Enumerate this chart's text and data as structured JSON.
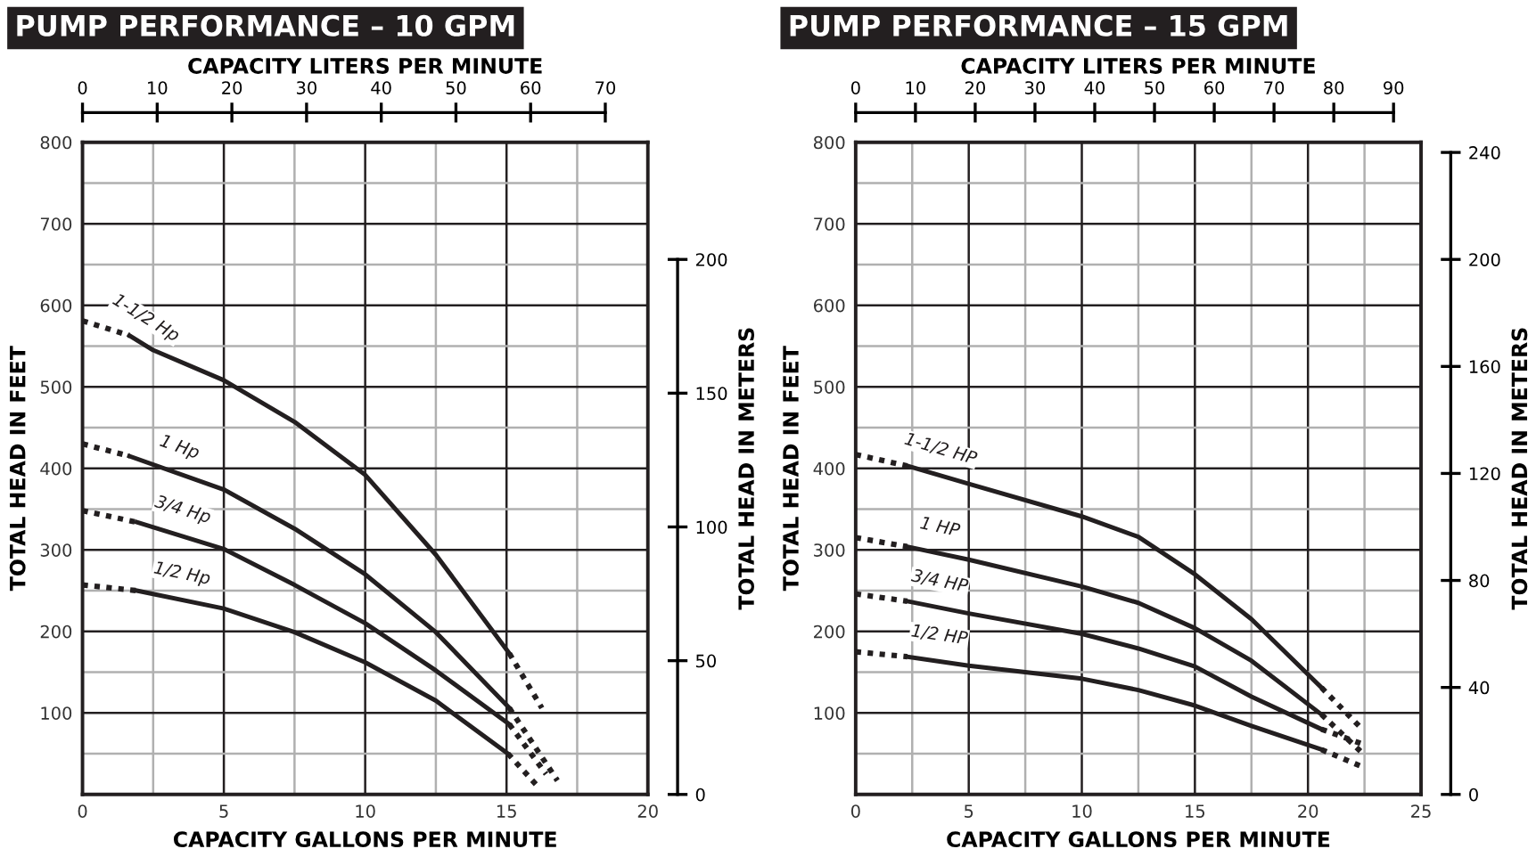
{
  "chart_data": [
    {
      "type": "line",
      "title": "PUMP PERFORMANCE – 10 GPM",
      "xlabel": "CAPACITY GALLONS PER MINUTE",
      "ylabel": "TOTAL HEAD IN FEET",
      "x2label": "CAPACITY LITERS PER MINUTE",
      "y2label": "TOTAL HEAD IN METERS",
      "xlim": [
        0,
        20
      ],
      "xticks": [
        0,
        {
          "value": 2.5,
          "label": null
        },
        5,
        {
          "value": 7.5,
          "label": null
        },
        10,
        {
          "value": 12.5,
          "label": null
        },
        15,
        {
          "value": 17.5,
          "label": null
        },
        20
      ],
      "ylim": [
        0,
        800
      ],
      "yticks": [
        {
          "value": 0,
          "label": null
        },
        {
          "value": 50,
          "label": null
        },
        100,
        {
          "value": 150,
          "label": null
        },
        200,
        {
          "value": 250,
          "label": null
        },
        300,
        {
          "value": 350,
          "label": null
        },
        400,
        {
          "value": 450,
          "label": null
        },
        500,
        {
          "value": 550,
          "label": null
        },
        600,
        {
          "value": 650,
          "label": null
        },
        700,
        {
          "value": 750,
          "label": null
        },
        800
      ],
      "x2lim": [
        0,
        75.7
      ],
      "x2ticks": [
        0,
        10,
        20,
        30,
        40,
        50,
        60,
        70
      ],
      "y2lim": [
        0,
        243.8
      ],
      "y2ticks": [
        0,
        50,
        100,
        150,
        200
      ],
      "grid": true,
      "legend": false,
      "marker": "none",
      "series": [
        {
          "color": "#231f20",
          "line_style": "dotted",
          "x": [
            0,
            1.66
          ],
          "values": [
            581,
            563
          ]
        },
        {
          "name": "1-1/2 Hp",
          "color": "#231f20",
          "line_style": "solid",
          "x": [
            1.66,
            2.5,
            5,
            7.5,
            10,
            12.5,
            15.1
          ],
          "values": [
            563,
            545,
            508,
            457,
            392,
            294,
            173
          ]
        },
        {
          "color": "#231f20",
          "line_style": "dotted",
          "x": [
            15.1,
            16.25
          ],
          "values": [
            173,
            106
          ]
        },
        {
          "color": "#231f20",
          "line_style": "dotted",
          "x": [
            0,
            1.66
          ],
          "values": [
            430,
            415
          ]
        },
        {
          "name": "1 Hp",
          "color": "#231f20",
          "line_style": "solid",
          "x": [
            1.66,
            5,
            7.5,
            10,
            12.5,
            15.1
          ],
          "values": [
            415,
            374,
            326,
            270,
            199,
            106
          ]
        },
        {
          "color": "#231f20",
          "line_style": "dotted",
          "x": [
            15.1,
            16.8
          ],
          "values": [
            106,
            17
          ]
        },
        {
          "color": "#231f20",
          "line_style": "dotted",
          "x": [
            0,
            1.92
          ],
          "values": [
            348,
            334
          ]
        },
        {
          "name": "3/4 Hp",
          "color": "#231f20",
          "line_style": "solid",
          "x": [
            1.92,
            5,
            7.5,
            10,
            12.5,
            15.1
          ],
          "values": [
            334,
            301,
            257,
            210,
            152,
            86
          ]
        },
        {
          "color": "#231f20",
          "line_style": "dotted",
          "x": [
            15.1,
            16.4
          ],
          "values": [
            86,
            25
          ]
        },
        {
          "color": "#231f20",
          "line_style": "dotted",
          "x": [
            0,
            1.92
          ],
          "values": [
            257,
            250
          ]
        },
        {
          "name": "1/2 Hp",
          "color": "#231f20",
          "line_style": "solid",
          "x": [
            1.92,
            5,
            7.5,
            10,
            12.5,
            15.05
          ],
          "values": [
            250,
            228,
            199,
            162,
            115,
            50
          ]
        },
        {
          "color": "#231f20",
          "line_style": "dotted",
          "x": [
            15.05,
            16.1
          ],
          "values": [
            50,
            10
          ]
        }
      ]
    },
    {
      "type": "line",
      "title": "PUMP PERFORMANCE – 15 GPM",
      "xlabel": "CAPACITY GALLONS PER MINUTE",
      "ylabel": "TOTAL HEAD IN FEET",
      "x2label": "CAPACITY LITERS PER MINUTE",
      "y2label": "TOTAL HEAD IN METERS",
      "xlim": [
        0,
        25
      ],
      "xticks": [
        0,
        {
          "value": 2.5,
          "label": null
        },
        5,
        {
          "value": 7.5,
          "label": null
        },
        10,
        {
          "value": 12.5,
          "label": null
        },
        15,
        {
          "value": 17.5,
          "label": null
        },
        20,
        {
          "value": 22.5,
          "label": null
        },
        25
      ],
      "ylim": [
        0,
        800
      ],
      "yticks": [
        {
          "value": 0,
          "label": null
        },
        {
          "value": 50,
          "label": null
        },
        100,
        {
          "value": 150,
          "label": null
        },
        200,
        {
          "value": 250,
          "label": null
        },
        300,
        {
          "value": 350,
          "label": null
        },
        400,
        {
          "value": 450,
          "label": null
        },
        500,
        {
          "value": 550,
          "label": null
        },
        600,
        {
          "value": 650,
          "label": null
        },
        700,
        {
          "value": 750,
          "label": null
        },
        800
      ],
      "x2lim": [
        0,
        94.6
      ],
      "x2ticks": [
        0,
        10,
        20,
        30,
        40,
        50,
        60,
        70,
        80,
        90
      ],
      "y2lim": [
        0,
        243.8
      ],
      "y2ticks": [
        0,
        40,
        80,
        120,
        160,
        200,
        240
      ],
      "grid": true,
      "legend": false,
      "marker": "none",
      "series": [
        {
          "color": "#231f20",
          "line_style": "dotted",
          "x": [
            0,
            2.28
          ],
          "values": [
            417,
            403
          ]
        },
        {
          "name": "1-1/2 HP",
          "color": "#231f20",
          "line_style": "solid",
          "x": [
            2.28,
            5,
            10,
            12.5,
            15,
            17.5,
            20.6
          ],
          "values": [
            403,
            381,
            341,
            316,
            270,
            215,
            131
          ]
        },
        {
          "color": "#231f20",
          "line_style": "dotted",
          "x": [
            20.6,
            22.4
          ],
          "values": [
            131,
            80
          ]
        },
        {
          "color": "#231f20",
          "line_style": "dotted",
          "x": [
            0,
            2.28
          ],
          "values": [
            315,
            304
          ]
        },
        {
          "name": "1 HP",
          "color": "#231f20",
          "line_style": "solid",
          "x": [
            2.28,
            5,
            10,
            12.5,
            15,
            17.5,
            20.6
          ],
          "values": [
            304,
            288,
            255,
            235,
            204,
            164,
            98
          ]
        },
        {
          "color": "#231f20",
          "line_style": "dotted",
          "x": [
            20.6,
            22.4
          ],
          "values": [
            98,
            51
          ]
        },
        {
          "color": "#231f20",
          "line_style": "dotted",
          "x": [
            0,
            2.28
          ],
          "values": [
            246,
            237
          ]
        },
        {
          "name": "3/4 HP",
          "color": "#231f20",
          "line_style": "solid",
          "x": [
            2.28,
            5,
            10,
            12.5,
            15,
            17.5,
            20.6
          ],
          "values": [
            237,
            222,
            197,
            179,
            157,
            120,
            80
          ]
        },
        {
          "color": "#231f20",
          "line_style": "dotted",
          "x": [
            20.6,
            22.4
          ],
          "values": [
            80,
            62
          ]
        },
        {
          "color": "#231f20",
          "line_style": "dotted",
          "x": [
            0,
            2.28
          ],
          "values": [
            175,
            169
          ]
        },
        {
          "name": "1/2 HP",
          "color": "#231f20",
          "line_style": "solid",
          "x": [
            2.28,
            5,
            10,
            12.5,
            15,
            17.5,
            20.6
          ],
          "values": [
            169,
            158,
            142,
            128,
            109,
            84,
            55
          ]
        },
        {
          "color": "#231f20",
          "line_style": "dotted",
          "x": [
            20.6,
            22.4
          ],
          "values": [
            55,
            34
          ]
        }
      ]
    }
  ]
}
